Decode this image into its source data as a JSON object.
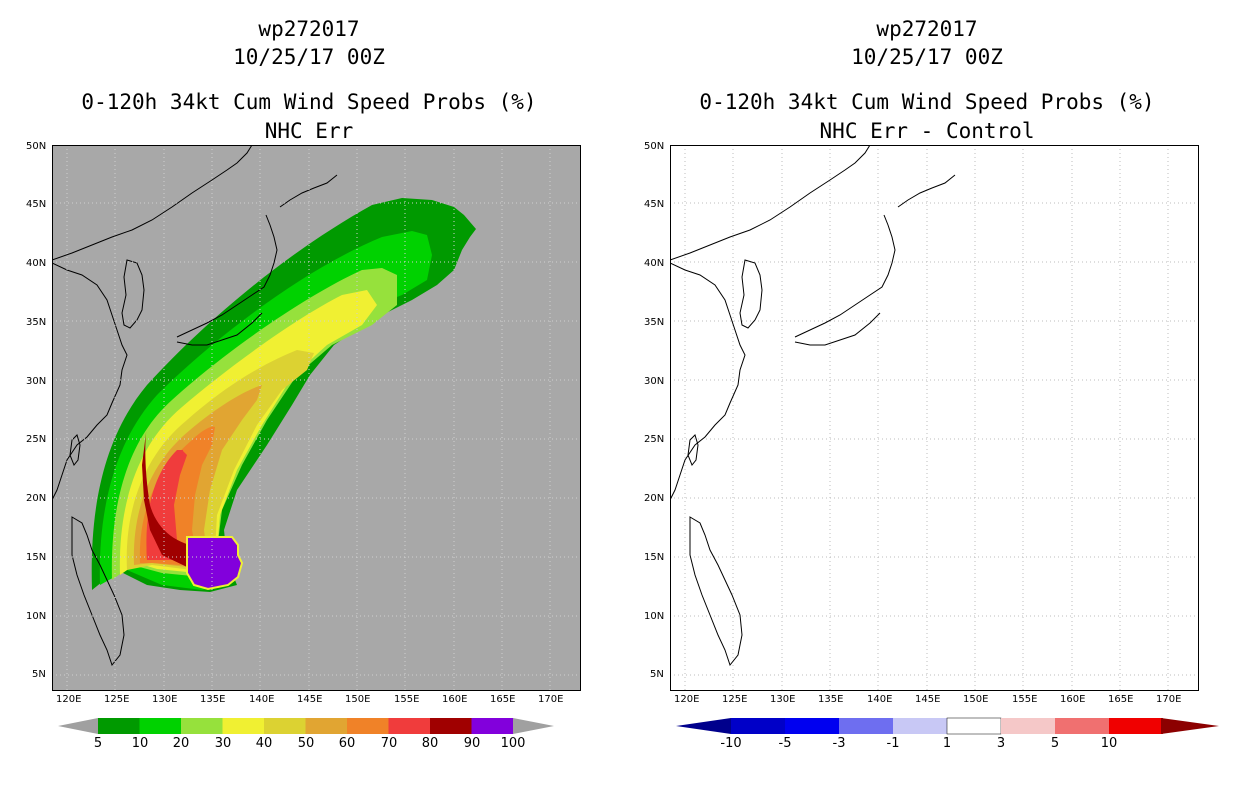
{
  "left_panel": {
    "storm_id": "wp272017",
    "datetime": "10/25/17 00Z",
    "product": "0-120h 34kt Cum Wind Speed Probs (%)",
    "model": "NHC Err",
    "lat_labels": [
      "50N",
      "45N",
      "40N",
      "35N",
      "30N",
      "25N",
      "20N",
      "15N",
      "10N",
      "5N"
    ],
    "lon_labels": [
      "120E",
      "125E",
      "130E",
      "135E",
      "140E",
      "145E",
      "150E",
      "155E",
      "160E",
      "165E",
      "170E"
    ],
    "colorbar": {
      "labels": [
        "5",
        "10",
        "20",
        "30",
        "40",
        "50",
        "60",
        "70",
        "80",
        "90",
        "100"
      ],
      "colors": [
        "#009a00",
        "#00d200",
        "#96e13c",
        "#f0f032",
        "#dcd232",
        "#e1a532",
        "#f08228",
        "#f03c3c",
        "#a00000",
        "#8200dc"
      ],
      "end_color": "#a0a0a0"
    }
  },
  "right_panel": {
    "storm_id": "wp272017",
    "datetime": "10/25/17 00Z",
    "product": "0-120h 34kt Cum Wind Speed Probs (%)",
    "model": "NHC Err - Control",
    "lat_labels": [
      "50N",
      "45N",
      "40N",
      "35N",
      "30N",
      "25N",
      "20N",
      "15N",
      "10N",
      "5N"
    ],
    "lon_labels": [
      "120E",
      "125E",
      "130E",
      "135E",
      "140E",
      "145E",
      "150E",
      "155E",
      "160E",
      "165E",
      "170E"
    ],
    "colorbar": {
      "labels": [
        "-10",
        "-5",
        "-3",
        "-1",
        "1",
        "3",
        "5",
        "10"
      ],
      "colors": [
        "#0000c8",
        "#0000f0",
        "#6e6ef0",
        "#c8c8f5",
        "#ffffff",
        "#f5c8c8",
        "#f07070",
        "#f00000"
      ],
      "low_end_color": "#00008c",
      "high_end_color": "#8c0000"
    }
  }
}
